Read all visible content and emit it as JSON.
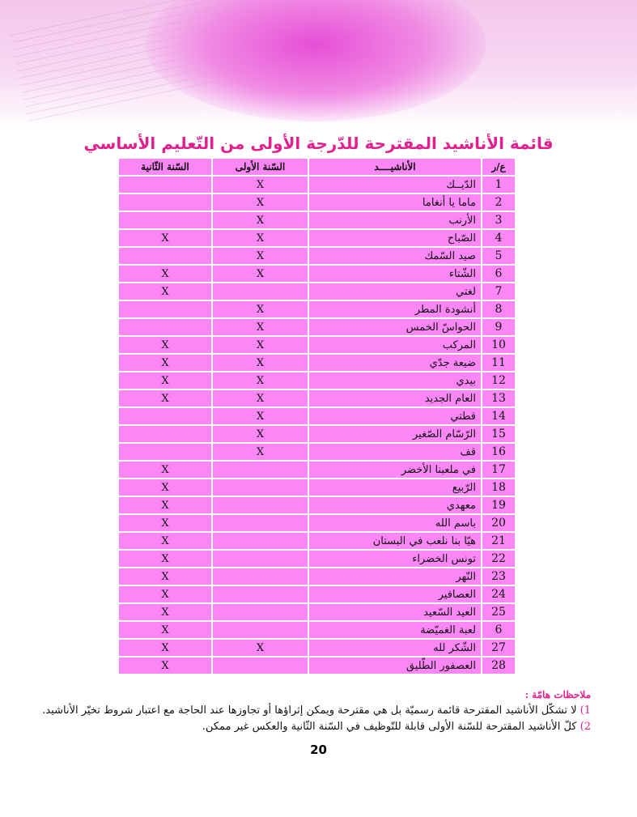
{
  "title": "قائمة الأناشيد المقترحة للدّرجة الأولى من التّعليم الأساسي",
  "table": {
    "headers": [
      "ع/ر",
      "الأناشيــــد",
      "السّنة الأولى",
      "السّنة الثّانية"
    ],
    "rows": [
      [
        "1",
        "الدّيــك",
        "X",
        ""
      ],
      [
        "2",
        "ماما يا أنغاما",
        "X",
        ""
      ],
      [
        "3",
        "الأرنب",
        "X",
        ""
      ],
      [
        "4",
        "الصّباح",
        "X",
        "X"
      ],
      [
        "5",
        "صيد السّمك",
        "X",
        ""
      ],
      [
        "6",
        "الشّتاء",
        "X",
        "X"
      ],
      [
        "7",
        "لغتي",
        "",
        "X"
      ],
      [
        "8",
        "أنشودة المطر",
        "X",
        ""
      ],
      [
        "9",
        "الحواسّ الخمس",
        "X",
        ""
      ],
      [
        "10",
        "المركب",
        "X",
        "X"
      ],
      [
        "11",
        "ضيعة جدّي",
        "X",
        "X"
      ],
      [
        "12",
        "بيدي",
        "X",
        "X"
      ],
      [
        "13",
        "العام الجديد",
        "X",
        "X"
      ],
      [
        "14",
        "قطتي",
        "X",
        ""
      ],
      [
        "15",
        "الرّسّام الصّغير",
        "X",
        ""
      ],
      [
        "16",
        "قف",
        "X",
        ""
      ],
      [
        "17",
        "في ملعبنا الأخضر",
        "",
        "X"
      ],
      [
        "18",
        "الرّبيع",
        "",
        "X"
      ],
      [
        "19",
        "معهدي",
        "",
        "X"
      ],
      [
        "20",
        "باسم الله",
        "",
        "X"
      ],
      [
        "21",
        "هيّا بنا نلعب في البستان",
        "",
        "X"
      ],
      [
        "22",
        "تونس الخضراء",
        "",
        "X"
      ],
      [
        "23",
        "النّهر",
        "",
        "X"
      ],
      [
        "24",
        "العصافير",
        "",
        "X"
      ],
      [
        "25",
        "العيد السّعيد",
        "",
        "X"
      ],
      [
        "6",
        "لعبة الغميّضة",
        "",
        "X"
      ],
      [
        "27",
        "الشّكر لله",
        "X",
        "X"
      ],
      [
        "28",
        "العصفور الطّليق",
        "",
        "X"
      ]
    ]
  },
  "notes": {
    "heading": "ملاحظات هامّة :",
    "items": [
      {
        "num": "1)",
        "text": "لا تشكّل الأناشيد المقترحة قائمة رسميّة بل هي مقترحة ويمكن إثراؤها أو تجاوزها عند الحاجة مع اعتبار شروط تخيّر الأناشيد."
      },
      {
        "num": "2)",
        "text": "كلّ الأناشيد المقترحة للسّنة الأولى قابلة للتّوظيف في السّنة الثّانية والعكس غير ممكن."
      }
    ]
  },
  "page_number": "20"
}
